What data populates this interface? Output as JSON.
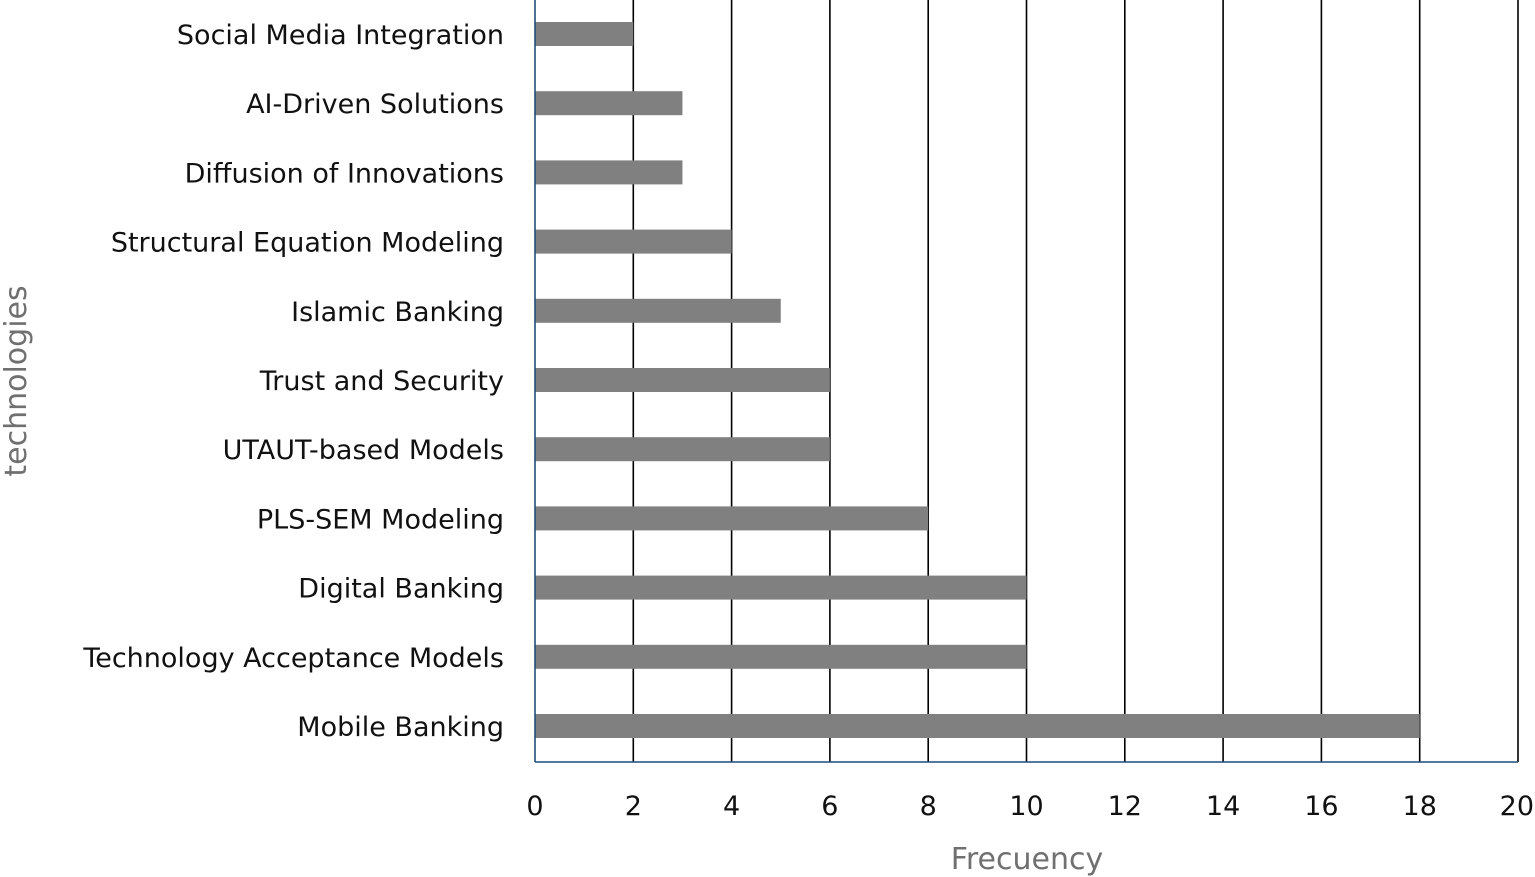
{
  "chart_data": {
    "type": "bar",
    "orientation": "horizontal",
    "categories": [
      "Social Media Integration",
      "AI-Driven Solutions",
      "Diffusion of Innovations",
      "Structural Equation Modeling",
      "Islamic Banking",
      "Trust and Security",
      "UTAUT-based Models",
      "PLS-SEM Modeling",
      "Digital Banking",
      "Technology Acceptance Models",
      "Mobile Banking"
    ],
    "values": [
      2,
      3,
      3,
      4,
      5,
      6,
      6,
      8,
      10,
      10,
      18
    ],
    "title": "",
    "xlabel": "Frecuency",
    "ylabel": "technologies",
    "xlim": [
      0,
      20
    ],
    "xticks": [
      0,
      2,
      4,
      6,
      8,
      10,
      12,
      14,
      16,
      18,
      20
    ],
    "grid": "vertical",
    "legend": "none",
    "colors": {
      "bar": "#808080",
      "grid": "#000000",
      "axis": "#1f4e79"
    }
  }
}
